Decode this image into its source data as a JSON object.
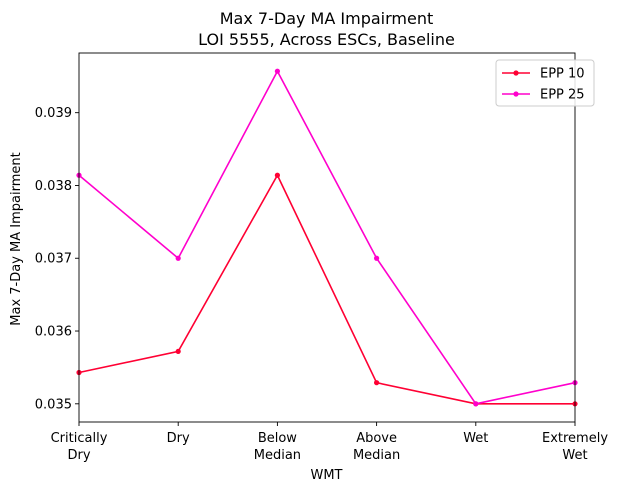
{
  "chart_data": {
    "type": "line",
    "title_line1": "Max 7-Day MA Impairment",
    "title_line2": "LOI 5555, Across ESCs, Baseline",
    "xlabel": "WMT",
    "ylabel": "Max 7-Day MA Impairment",
    "categories": [
      [
        "Critically",
        "Dry"
      ],
      [
        "Dry"
      ],
      [
        "Below",
        "Median"
      ],
      [
        "Above",
        "Median"
      ],
      [
        "Wet"
      ],
      [
        "Extremely",
        "Wet"
      ]
    ],
    "yticks": [
      "0.035",
      "0.036",
      "0.037",
      "0.038",
      "0.039"
    ],
    "ylim": [
      0.03475,
      0.03982
    ],
    "grid": false,
    "legend_position": "top-right",
    "series": [
      {
        "name": "EPP 10",
        "color": "#ff0033",
        "values": [
          0.03543,
          0.03572,
          0.03814,
          0.03529,
          0.035,
          0.035
        ]
      },
      {
        "name": "EPP 25",
        "color": "#ff00cc",
        "values": [
          0.03814,
          0.037,
          0.03957,
          0.037,
          0.035,
          0.03529
        ]
      }
    ]
  }
}
